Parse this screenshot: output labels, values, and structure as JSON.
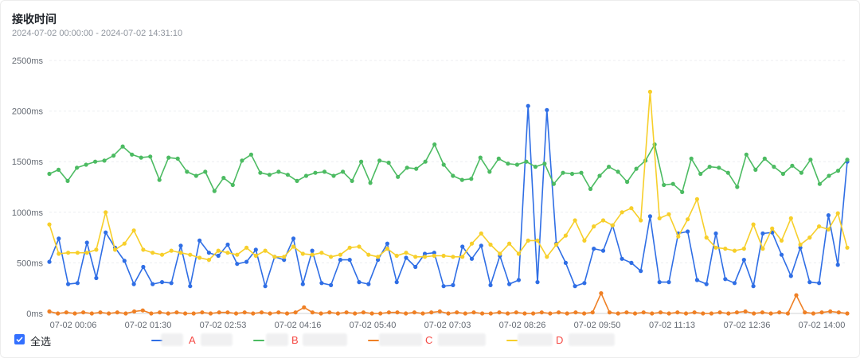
{
  "header": {
    "title": "接收时间",
    "range": "2024-07-02 00:00:00 - 2024-07-02 14:31:10"
  },
  "legend": {
    "select_all": "全选",
    "items": [
      {
        "label": "A",
        "color": "#2f6ee5"
      },
      {
        "label": "B",
        "color": "#4cbb62"
      },
      {
        "label": "C",
        "color": "#ef8025"
      },
      {
        "label": "D",
        "color": "#f7cf2a"
      }
    ]
  },
  "chart_data": {
    "type": "line",
    "ylim": [
      0,
      2500
    ],
    "yticks": [
      "0ms",
      "500ms",
      "1000ms",
      "1500ms",
      "2000ms",
      "2500ms"
    ],
    "xticks": [
      "07-02 00:06",
      "07-02 01:30",
      "07-02 02:53",
      "07-02 04:16",
      "07-02 05:40",
      "07-02 07:03",
      "07-02 08:26",
      "07-02 09:50",
      "07-02 11:13",
      "07-02 12:36",
      "07-02 14:00"
    ],
    "series": [
      {
        "name": "A",
        "color": "#2f6ee5",
        "values": [
          510,
          740,
          290,
          300,
          700,
          350,
          800,
          650,
          520,
          290,
          460,
          290,
          310,
          300,
          670,
          270,
          720,
          600,
          570,
          680,
          490,
          510,
          630,
          270,
          560,
          530,
          740,
          290,
          620,
          300,
          280,
          530,
          530,
          310,
          290,
          530,
          690,
          310,
          550,
          460,
          590,
          600,
          270,
          280,
          660,
          540,
          670,
          280,
          570,
          290,
          330,
          2050,
          310,
          2010,
          690,
          500,
          270,
          300,
          640,
          620,
          870,
          540,
          500,
          420,
          960,
          310,
          310,
          790,
          810,
          330,
          290,
          790,
          340,
          300,
          530,
          270,
          790,
          800,
          580,
          370,
          650,
          310,
          300,
          970,
          480,
          1500
        ]
      },
      {
        "name": "B",
        "color": "#4cbb62",
        "values": [
          1380,
          1420,
          1310,
          1440,
          1470,
          1500,
          1510,
          1560,
          1650,
          1570,
          1540,
          1550,
          1320,
          1540,
          1530,
          1400,
          1360,
          1400,
          1210,
          1340,
          1270,
          1510,
          1570,
          1390,
          1370,
          1400,
          1370,
          1310,
          1360,
          1390,
          1400,
          1360,
          1400,
          1310,
          1500,
          1290,
          1510,
          1490,
          1350,
          1440,
          1430,
          1500,
          1670,
          1470,
          1360,
          1320,
          1330,
          1540,
          1400,
          1530,
          1480,
          1470,
          1500,
          1450,
          1480,
          1280,
          1390,
          1380,
          1390,
          1230,
          1360,
          1450,
          1400,
          1300,
          1430,
          1510,
          1670,
          1270,
          1280,
          1200,
          1530,
          1380,
          1450,
          1440,
          1390,
          1250,
          1570,
          1420,
          1530,
          1450,
          1380,
          1460,
          1390,
          1520,
          1280,
          1360,
          1410,
          1520
        ]
      },
      {
        "name": "C",
        "color": "#ef8025",
        "values": [
          20,
          0,
          10,
          0,
          10,
          0,
          10,
          0,
          10,
          0,
          20,
          30,
          0,
          10,
          0,
          10,
          0,
          0,
          10,
          0,
          10,
          10,
          0,
          10,
          0,
          10,
          0,
          10,
          0,
          10,
          60,
          10,
          0,
          10,
          0,
          10,
          0,
          10,
          0,
          0,
          10,
          10,
          0,
          10,
          0,
          10,
          20,
          0,
          10,
          0,
          10,
          0,
          0,
          10,
          0,
          10,
          0,
          0,
          10,
          0,
          10,
          0,
          10,
          0,
          10,
          200,
          10,
          0,
          10,
          0,
          10,
          0,
          10,
          0,
          10,
          0,
          10,
          0,
          0,
          10,
          0,
          10,
          20,
          0,
          10,
          0,
          10,
          0,
          180,
          10,
          0,
          10,
          20,
          10,
          0
        ]
      },
      {
        "name": "D",
        "color": "#f7cf2a",
        "values": [
          880,
          590,
          600,
          600,
          600,
          630,
          1000,
          630,
          690,
          820,
          630,
          600,
          580,
          620,
          600,
          580,
          550,
          530,
          620,
          600,
          580,
          650,
          570,
          620,
          560,
          560,
          660,
          590,
          580,
          600,
          560,
          580,
          650,
          660,
          580,
          560,
          640,
          570,
          600,
          560,
          560,
          570,
          570,
          560,
          560,
          690,
          790,
          680,
          590,
          690,
          590,
          720,
          720,
          560,
          680,
          770,
          920,
          720,
          860,
          920,
          870,
          1000,
          1040,
          920,
          2190,
          940,
          980,
          760,
          930,
          1130,
          750,
          650,
          640,
          620,
          640,
          880,
          640,
          840,
          720,
          940,
          680,
          750,
          860,
          830,
          990,
          650
        ]
      }
    ]
  }
}
